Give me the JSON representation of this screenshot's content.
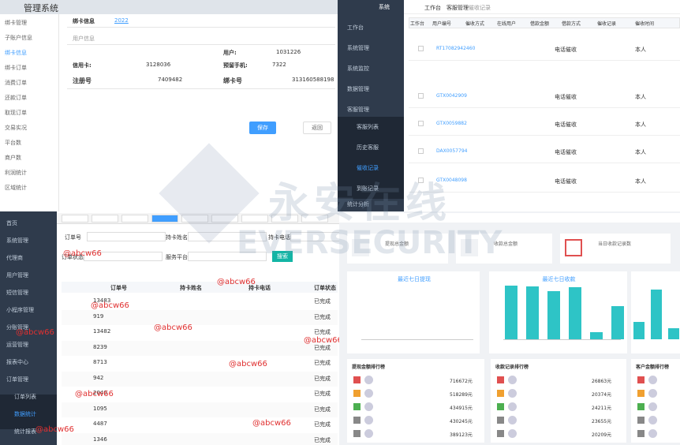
{
  "watermark": {
    "cn": "永安在线",
    "en": "EVERSECURITY"
  },
  "panel_a": {
    "title": "管理系统",
    "menu": [
      "绑卡管理",
      "子账户信息",
      "绑卡信息",
      "绑卡订单",
      "消费订单",
      "还款订单",
      "取现订单",
      "交易实况",
      "平台数",
      "商户数",
      "利润统计",
      "区域统计"
    ],
    "active_menu": 2,
    "section": "绑卡信息",
    "link": "2022",
    "subsection": "用户信息",
    "fields": [
      {
        "label": "用户:",
        "value": "1031226"
      },
      {
        "label": "信用卡:",
        "value": "3128036"
      },
      {
        "label": "预留手机:",
        "value": "7322"
      },
      {
        "label": "注册号",
        "value": "7409482"
      },
      {
        "label": "绑卡号",
        "value": "313160588198"
      }
    ],
    "buttons": [
      "保存",
      "返回"
    ]
  },
  "panel_b": {
    "logo": "系统",
    "menu": [
      "工作台",
      "系统管理",
      "系统监控",
      "数据管理",
      "客服管理",
      "客服列表",
      "历史客服",
      "催收记录",
      "到账记录",
      "统计分析"
    ],
    "breadcrumb": [
      "工作台",
      "客服管理",
      "催收记录"
    ],
    "columns": [
      "工作台",
      "用户编号",
      "催收方式",
      "在线用户",
      "借款金额",
      "借款方式",
      "催收记录",
      "催收时间"
    ],
    "rows": [
      [
        "RT17082942460",
        "电话催收",
        "本人"
      ],
      [
        "GTX0042909",
        "电话催收",
        "本人"
      ],
      [
        "GTX0059882",
        "电话催收",
        "本人"
      ],
      [
        "DAX0057794",
        "电话催收",
        "本人"
      ],
      [
        "GTX0048098",
        "电话催收",
        "本人"
      ]
    ]
  },
  "panel_c": {
    "menu": [
      "首页",
      "系统管理",
      "代理商",
      "用户管理",
      "短信管理",
      "小程序管理",
      "分账管理",
      "运营管理",
      "报表中心",
      "订单管理",
      "订单列表",
      "数据统计",
      "统计报表"
    ],
    "filters": [
      "订单号",
      "持卡姓名",
      "持卡电话",
      "订单状态",
      "服务平台"
    ],
    "search": "搜索",
    "columns": [
      "订单号",
      "持卡姓名",
      "持卡电话",
      "订单状态"
    ],
    "rows": [
      [
        "13483",
        "已完成"
      ],
      [
        "919",
        "已完成"
      ],
      [
        "13482",
        "已完成"
      ],
      [
        "8239",
        "已完成"
      ],
      [
        "8713",
        "已完成"
      ],
      [
        "942",
        "已完成"
      ],
      [
        "2040",
        "已完成"
      ],
      [
        "1095",
        "已完成"
      ],
      [
        "4487",
        "已完成"
      ],
      [
        "1346",
        "已完成"
      ]
    ],
    "tag": "@abcw66"
  },
  "panel_d": {
    "cards": [
      "提现总金额",
      "收款总金额",
      "当日收款记录数"
    ],
    "charts": [
      "最近七日提现",
      "最近七日收款"
    ],
    "bars": [
      95,
      93,
      85,
      92,
      12,
      58
    ],
    "bars_right": [
      30,
      88,
      20
    ],
    "rank_titles": [
      "提现金额排行榜",
      "收款记录排行榜",
      "客户金额排行榜"
    ],
    "rank_a": [
      "716672元",
      "518289元",
      "434915元",
      "430245元",
      "389123元"
    ],
    "rank_b": [
      "26863元",
      "20374元",
      "24211元",
      "23655元",
      "20209元"
    ]
  }
}
